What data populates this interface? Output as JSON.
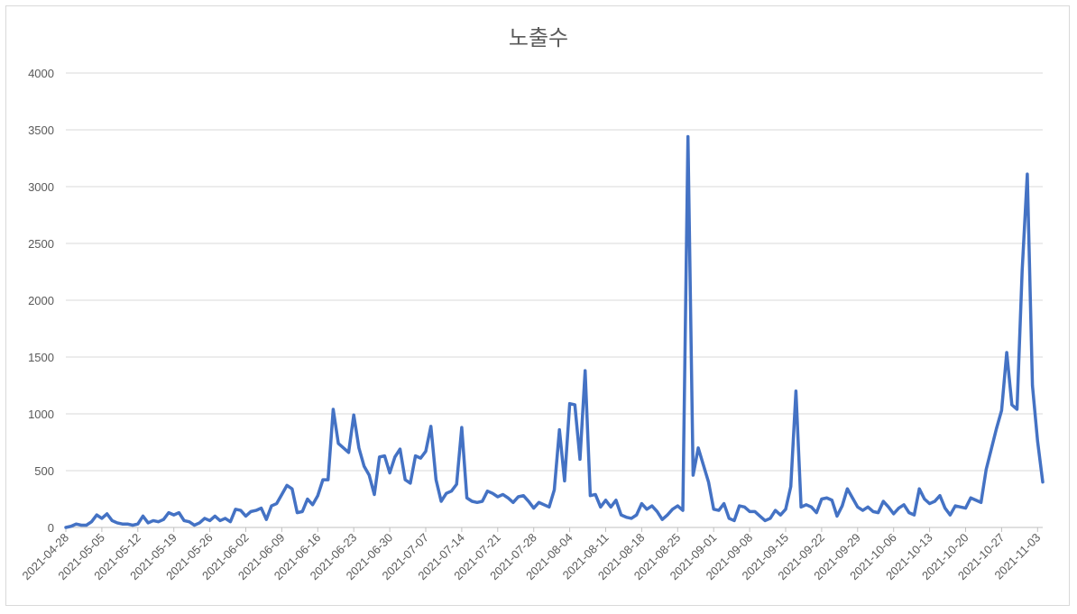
{
  "chart_data": {
    "type": "line",
    "title": "노출수",
    "xlabel": "",
    "ylabel": "",
    "ylim": [
      0,
      4000
    ],
    "y_ticks": [
      "0",
      "500",
      "1000",
      "1500",
      "2000",
      "2500",
      "3000",
      "3500",
      "4000"
    ],
    "x_tick_labels": [
      "2021-04-28",
      "2021-05-05",
      "2021-05-12",
      "2021-05-19",
      "2021-05-26",
      "2021-06-02",
      "2021-06-09",
      "2021-06-16",
      "2021-06-23",
      "2021-06-30",
      "2021-07-07",
      "2021-07-14",
      "2021-07-21",
      "2021-07-28",
      "2021-08-04",
      "2021-08-11",
      "2021-08-18",
      "2021-08-25",
      "2021-09-01",
      "2021-09-08",
      "2021-09-15",
      "2021-09-22",
      "2021-09-29",
      "2021-10-06",
      "2021-10-13",
      "2021-10-20",
      "2021-10-27",
      "2021-11-03"
    ],
    "grid": true,
    "line_color": "#4472c4",
    "start_date": "2021-04-28",
    "series": [
      {
        "values": [
          0,
          10,
          30,
          20,
          20,
          50,
          110,
          80,
          120,
          60,
          40,
          30,
          30,
          20,
          30,
          100,
          40,
          60,
          50,
          70,
          130,
          110,
          130,
          60,
          50,
          20,
          40,
          80,
          60,
          100,
          60,
          80,
          50,
          160,
          150,
          100,
          140,
          150,
          170,
          70,
          190,
          210,
          290,
          370,
          340,
          130,
          140,
          250,
          200,
          280,
          420,
          420,
          1040,
          740,
          700,
          660,
          990,
          700,
          540,
          460,
          290,
          620,
          630,
          480,
          620,
          690,
          420,
          390,
          630,
          610,
          670,
          890,
          420,
          230,
          300,
          320,
          380,
          880,
          260,
          230,
          220,
          230,
          320,
          300,
          270,
          290,
          260,
          220,
          270,
          280,
          230,
          170,
          220,
          200,
          180,
          330,
          860,
          410,
          1090,
          1080,
          600,
          1380,
          280,
          290,
          180,
          240,
          180,
          240,
          110,
          90,
          80,
          110,
          210,
          160,
          190,
          140,
          70,
          110,
          160,
          190,
          150,
          3440,
          460,
          700,
          550,
          400,
          160,
          150,
          210,
          80,
          60,
          190,
          180,
          140,
          140,
          100,
          60,
          80,
          150,
          110,
          160,
          360,
          1200,
          180,
          200,
          180,
          130,
          250,
          260,
          240,
          100,
          190,
          340,
          260,
          180,
          150,
          180,
          140,
          130,
          230,
          180,
          120,
          170,
          200,
          130,
          110,
          340,
          250,
          210,
          230,
          280,
          170,
          110,
          190,
          180,
          170,
          260,
          240,
          220,
          510,
          690,
          870,
          1030,
          1540,
          1080,
          1040,
          2260,
          3110,
          1250,
          760,
          400
        ]
      }
    ]
  }
}
